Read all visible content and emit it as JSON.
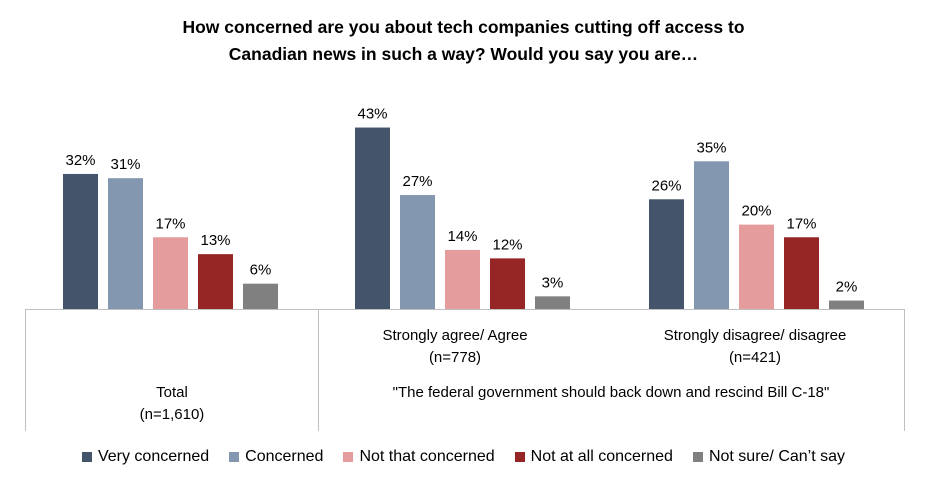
{
  "title_line1": "How concerned are you about tech companies cutting off access to",
  "title_line2": "Canadian news in such a way? Would you say you are…",
  "chart_data": {
    "type": "bar",
    "ylim": [
      0,
      45
    ],
    "grid": false,
    "legend_position": "bottom",
    "series": [
      {
        "name": "Very concerned",
        "color": "#44546a",
        "values": [
          32,
          43,
          26
        ]
      },
      {
        "name": "Concerned",
        "color": "#8497b0",
        "values": [
          31,
          27,
          35
        ]
      },
      {
        "name": "Not that concerned",
        "color": "#e59c9c",
        "values": [
          17,
          14,
          20
        ]
      },
      {
        "name": "Not at all concerned",
        "color": "#962626",
        "values": [
          13,
          12,
          17
        ]
      },
      {
        "name": "Not sure/ Can’t say",
        "color": "#808080",
        "values": [
          6,
          3,
          2
        ]
      }
    ],
    "groups": [
      {
        "label": "Total",
        "n": "(n=1,610)"
      },
      {
        "label": "Strongly agree/ Agree",
        "n": "(n=778)"
      },
      {
        "label": "Strongly disagree/ disagree",
        "n": "(n=421)"
      }
    ],
    "group_header": "\"The federal government should back down and rescind Bill C-18\""
  }
}
